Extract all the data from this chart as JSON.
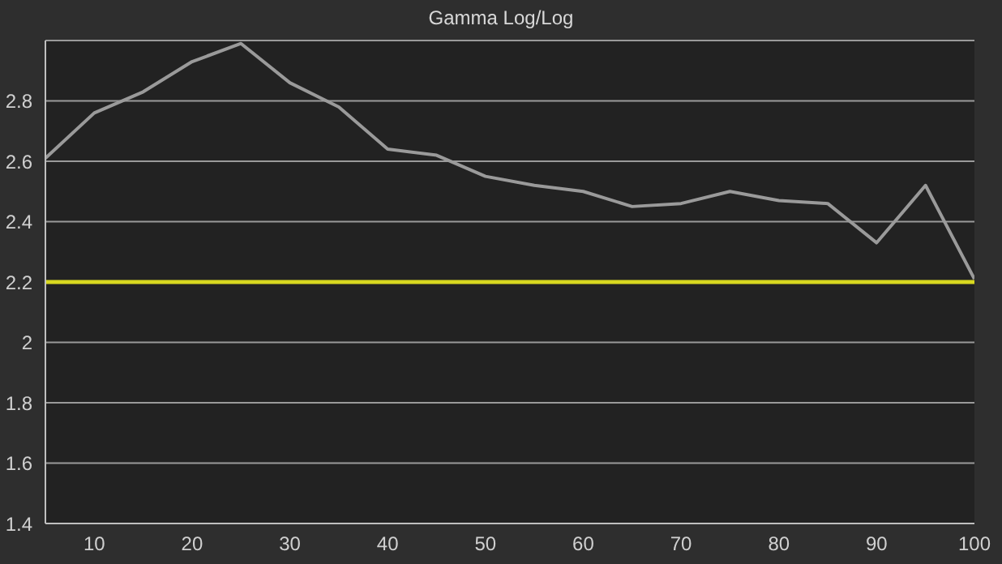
{
  "chart_data": {
    "type": "line",
    "title": "Gamma Log/Log",
    "x": [
      5,
      10,
      15,
      20,
      25,
      30,
      35,
      40,
      45,
      50,
      55,
      60,
      65,
      70,
      75,
      80,
      85,
      90,
      95,
      100
    ],
    "series": [
      {
        "color": "#9a9a9a",
        "values": [
          2.61,
          2.76,
          2.83,
          2.93,
          2.99,
          2.86,
          2.78,
          2.64,
          2.62,
          2.55,
          2.52,
          2.5,
          2.45,
          2.46,
          2.5,
          2.47,
          2.46,
          2.33,
          2.52,
          2.21
        ]
      }
    ],
    "xlim": [
      5,
      100
    ],
    "xticks": [
      10,
      20,
      30,
      40,
      50,
      60,
      70,
      80,
      90,
      100
    ],
    "ylim": [
      1.4,
      3.0
    ],
    "yticks": [
      1.4,
      1.6,
      1.8,
      2,
      2.2,
      2.4,
      2.6,
      2.8
    ],
    "grid": "y",
    "marker": "none",
    "line_style": "solid",
    "ref_lines": [
      {
        "axis": "y",
        "value": 2.2,
        "color": "#d8d820"
      }
    ]
  }
}
